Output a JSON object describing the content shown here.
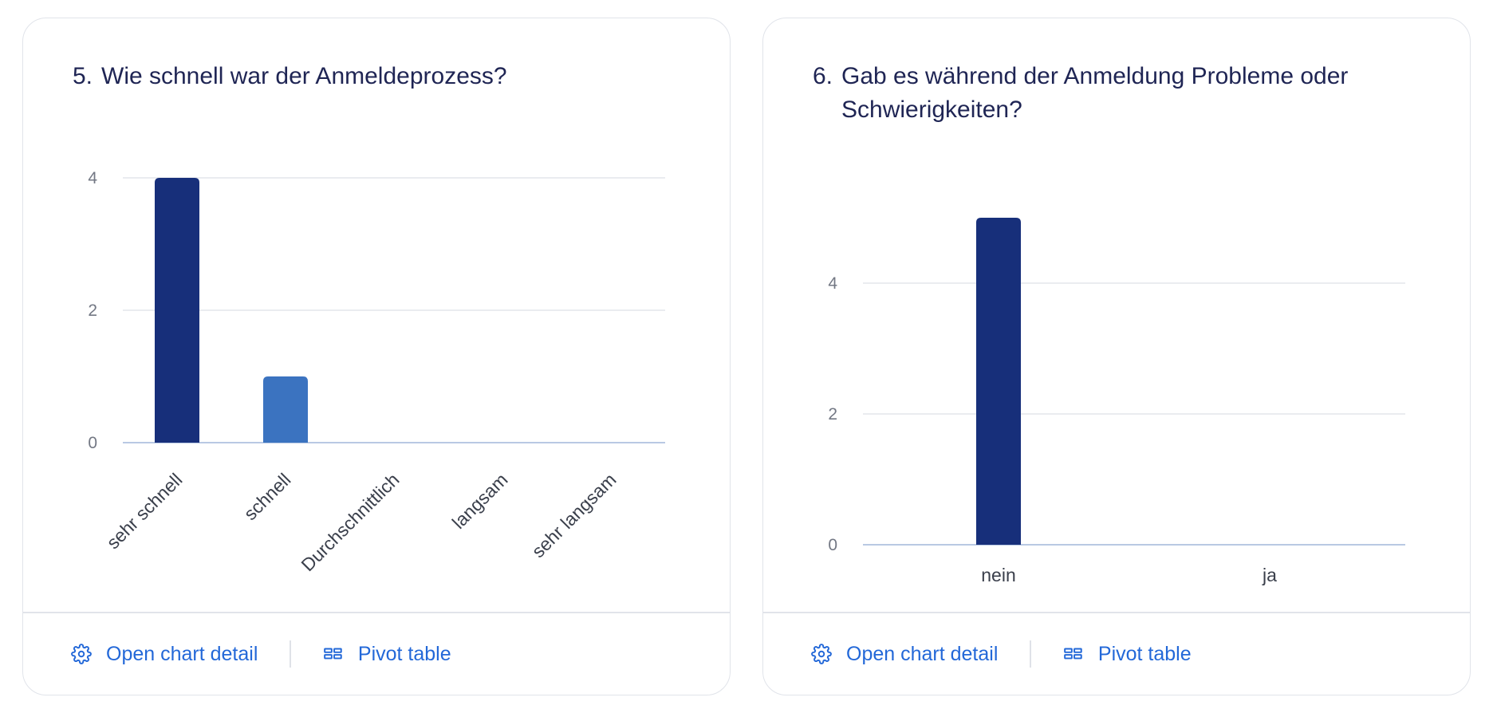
{
  "cards": [
    {
      "number": "5.",
      "title": "Wie schnell war der Anmeldeprozess?",
      "footer": {
        "detail_label": "Open chart detail",
        "pivot_label": "Pivot table"
      }
    },
    {
      "number": "6.",
      "title": "Gab es während der Anmeldung Probleme oder Schwierigkeiten?",
      "footer": {
        "detail_label": "Open chart detail",
        "pivot_label": "Pivot table"
      }
    }
  ],
  "colors": {
    "primary_bar": "#172f7a",
    "secondary_bar": "#3b73c0",
    "grid": "#e3e6ec",
    "baseline": "#b9c9e3",
    "link": "#2368d8"
  },
  "chart_data": [
    {
      "type": "bar",
      "categories": [
        "sehr schnell",
        "schnell",
        "Durchschnittlich",
        "langsam",
        "sehr langsam"
      ],
      "values": [
        4,
        1,
        0,
        0,
        0
      ],
      "bar_colors": [
        "#172f7a",
        "#3b73c0",
        "#5a8fd6",
        "#7ba9e3",
        "#9fc2ee"
      ],
      "yticks": [
        0,
        2,
        4
      ],
      "ylim": [
        0,
        4
      ],
      "xlabel_rotation": -45,
      "grid": true
    },
    {
      "type": "bar",
      "categories": [
        "nein",
        "ja"
      ],
      "values": [
        5,
        0
      ],
      "bar_colors": [
        "#172f7a",
        "#3b73c0"
      ],
      "yticks": [
        0,
        2,
        4
      ],
      "ylim": [
        0,
        5
      ],
      "xlabel_rotation": 0,
      "grid": true
    }
  ]
}
